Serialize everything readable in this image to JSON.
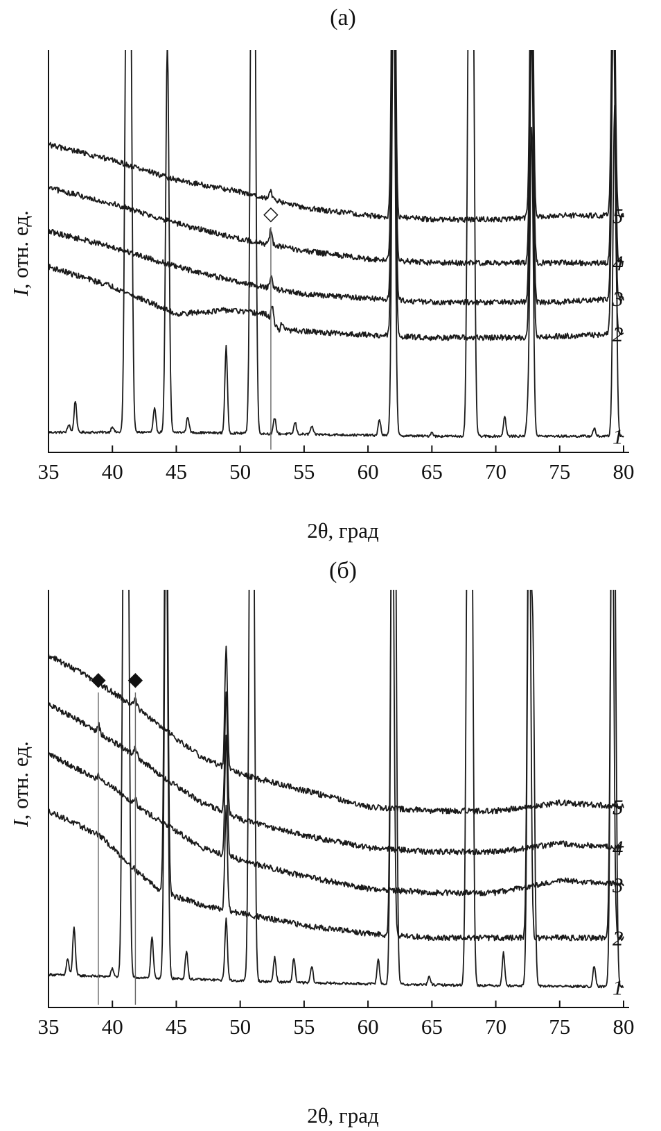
{
  "chart_data": [
    {
      "type": "line",
      "title": "(а)",
      "xlabel": "2θ, град",
      "ylabel_var": "I",
      "ylabel_rest": ", отн. ед.",
      "xlim": [
        35,
        80
      ],
      "xticks": [
        35,
        40,
        45,
        50,
        55,
        60,
        65,
        70,
        75,
        80
      ],
      "marker": {
        "symbol": "◇",
        "x": 52.4
      },
      "series": [
        {
          "name": "1",
          "baseline": [
            [
              35,
              0.03
            ],
            [
              45,
              0.03
            ],
            [
              55,
              0.025
            ],
            [
              65,
              0.02
            ],
            [
              80,
              0.02
            ]
          ],
          "peaks": [
            [
              36.6,
              0.02
            ],
            [
              37.1,
              0.08
            ],
            [
              40.0,
              0.015
            ],
            [
              41.1,
              1.2
            ],
            [
              41.4,
              1.2
            ],
            [
              43.3,
              0.06
            ],
            [
              44.3,
              0.98
            ],
            [
              45.9,
              0.04
            ],
            [
              48.9,
              0.22
            ],
            [
              50.9,
              1.2
            ],
            [
              51.1,
              1.2
            ],
            [
              52.7,
              0.04
            ],
            [
              54.3,
              0.03
            ],
            [
              55.6,
              0.02
            ],
            [
              60.9,
              0.04
            ],
            [
              62.0,
              1.2
            ],
            [
              65.0,
              0.01
            ],
            [
              67.9,
              1.2
            ],
            [
              68.2,
              1.2
            ],
            [
              70.7,
              0.05
            ],
            [
              72.5,
              0.05
            ],
            [
              72.8,
              0.78
            ],
            [
              77.7,
              0.02
            ],
            [
              79.3,
              0.84
            ]
          ]
        },
        {
          "name": "2",
          "baseline": [
            [
              35,
              0.45
            ],
            [
              40,
              0.4
            ],
            [
              45,
              0.33
            ],
            [
              49,
              0.34
            ],
            [
              52,
              0.33
            ],
            [
              53,
              0.29
            ],
            [
              58,
              0.28
            ],
            [
              65,
              0.27
            ],
            [
              72,
              0.27
            ],
            [
              80,
              0.28
            ]
          ],
          "peaks": [
            [
              52.5,
              0.04
            ],
            [
              53.3,
              0.02
            ],
            [
              62.0,
              1.2
            ],
            [
              72.8,
              0.78
            ],
            [
              79.2,
              0.84
            ]
          ]
        },
        {
          "name": "3",
          "baseline": [
            [
              35,
              0.54
            ],
            [
              40,
              0.5
            ],
            [
              45,
              0.45
            ],
            [
              50,
              0.41
            ],
            [
              55,
              0.38
            ],
            [
              60,
              0.37
            ],
            [
              65,
              0.36
            ],
            [
              70,
              0.36
            ],
            [
              75,
              0.36
            ],
            [
              80,
              0.37
            ]
          ],
          "peaks": [
            [
              52.4,
              0.03
            ],
            [
              62.0,
              1.2
            ],
            [
              72.8,
              0.78
            ],
            [
              79.2,
              0.84
            ]
          ]
        },
        {
          "name": "4",
          "baseline": [
            [
              35,
              0.65
            ],
            [
              40,
              0.61
            ],
            [
              45,
              0.56
            ],
            [
              50,
              0.52
            ],
            [
              55,
              0.49
            ],
            [
              60,
              0.47
            ],
            [
              65,
              0.46
            ],
            [
              70,
              0.46
            ],
            [
              75,
              0.46
            ],
            [
              80,
              0.46
            ]
          ],
          "peaks": [
            [
              52.4,
              0.04
            ],
            [
              62.0,
              1.2
            ],
            [
              72.8,
              0.78
            ],
            [
              79.2,
              0.84
            ]
          ]
        },
        {
          "name": "5",
          "baseline": [
            [
              35,
              0.76
            ],
            [
              40,
              0.72
            ],
            [
              45,
              0.67
            ],
            [
              50,
              0.64
            ],
            [
              55,
              0.6
            ],
            [
              60,
              0.58
            ],
            [
              65,
              0.57
            ],
            [
              70,
              0.57
            ],
            [
              75,
              0.58
            ],
            [
              80,
              0.58
            ]
          ],
          "peaks": [
            [
              52.4,
              0.02
            ],
            [
              62.0,
              1.2
            ],
            [
              72.8,
              0.78
            ],
            [
              79.2,
              0.84
            ]
          ]
        }
      ]
    },
    {
      "type": "line",
      "title": "(б)",
      "xlabel": "2θ, град",
      "ylabel_var": "I",
      "ylabel_rest": ", отн. ед.",
      "xlim": [
        35,
        80
      ],
      "xticks": [
        35,
        40,
        45,
        50,
        55,
        60,
        65,
        70,
        75,
        80
      ],
      "markers": [
        {
          "symbol": "◆",
          "x": 38.9
        },
        {
          "symbol": "◆",
          "x": 41.8
        }
      ],
      "series": [
        {
          "name": "1",
          "baseline": [
            [
              35,
              0.06
            ],
            [
              45,
              0.05
            ],
            [
              55,
              0.04
            ],
            [
              65,
              0.035
            ],
            [
              80,
              0.03
            ]
          ],
          "peaks": [
            [
              36.5,
              0.04
            ],
            [
              37.0,
              0.12
            ],
            [
              40.0,
              0.02
            ],
            [
              40.9,
              1.2
            ],
            [
              41.2,
              1.2
            ],
            [
              43.1,
              0.1
            ],
            [
              44.2,
              1.2
            ],
            [
              45.8,
              0.07
            ],
            [
              48.9,
              0.15
            ],
            [
              50.8,
              1.2
            ],
            [
              51.0,
              1.2
            ],
            [
              52.7,
              0.06
            ],
            [
              54.2,
              0.06
            ],
            [
              55.6,
              0.04
            ],
            [
              60.8,
              0.06
            ],
            [
              61.9,
              1.2
            ],
            [
              62.1,
              1.2
            ],
            [
              64.8,
              0.02
            ],
            [
              67.8,
              1.2
            ],
            [
              68.1,
              1.2
            ],
            [
              70.6,
              0.08
            ],
            [
              72.6,
              1.2
            ],
            [
              72.9,
              0.82
            ],
            [
              77.7,
              0.05
            ],
            [
              79.1,
              1.2
            ],
            [
              79.3,
              0.9
            ]
          ]
        },
        {
          "name": "2",
          "baseline": [
            [
              35,
              0.46
            ],
            [
              37,
              0.43
            ],
            [
              39,
              0.4
            ],
            [
              42,
              0.31
            ],
            [
              44,
              0.26
            ],
            [
              47,
              0.23
            ],
            [
              50,
              0.21
            ],
            [
              55,
              0.18
            ],
            [
              60,
              0.16
            ],
            [
              65,
              0.15
            ],
            [
              70,
              0.15
            ],
            [
              75,
              0.15
            ],
            [
              80,
              0.15
            ]
          ],
          "peaks": [
            [
              44.2,
              1.2
            ],
            [
              48.9,
              0.25
            ],
            [
              61.9,
              1.2
            ],
            [
              72.6,
              1.2
            ],
            [
              79.1,
              1.2
            ]
          ]
        },
        {
          "name": "3",
          "baseline": [
            [
              35,
              0.6
            ],
            [
              38,
              0.55
            ],
            [
              40,
              0.52
            ],
            [
              42,
              0.47
            ],
            [
              44,
              0.43
            ],
            [
              47,
              0.37
            ],
            [
              50,
              0.34
            ],
            [
              55,
              0.3
            ],
            [
              60,
              0.27
            ],
            [
              65,
              0.26
            ],
            [
              70,
              0.26
            ],
            [
              75,
              0.29
            ],
            [
              80,
              0.28
            ]
          ],
          "peaks": [
            [
              38.9,
              0.01
            ],
            [
              41.8,
              0.02
            ],
            [
              48.9,
              0.3
            ]
          ]
        },
        {
          "name": "4",
          "baseline": [
            [
              35,
              0.72
            ],
            [
              38,
              0.67
            ],
            [
              40,
              0.63
            ],
            [
              42,
              0.59
            ],
            [
              44,
              0.54
            ],
            [
              47,
              0.48
            ],
            [
              50,
              0.44
            ],
            [
              55,
              0.4
            ],
            [
              60,
              0.37
            ],
            [
              65,
              0.36
            ],
            [
              70,
              0.36
            ],
            [
              75,
              0.38
            ],
            [
              80,
              0.37
            ]
          ],
          "peaks": [
            [
              38.9,
              0.02
            ],
            [
              41.8,
              0.02
            ],
            [
              48.9,
              0.3
            ]
          ]
        },
        {
          "name": "5",
          "baseline": [
            [
              35,
              0.84
            ],
            [
              38,
              0.79
            ],
            [
              40,
              0.75
            ],
            [
              42,
              0.71
            ],
            [
              44,
              0.66
            ],
            [
              47,
              0.59
            ],
            [
              50,
              0.55
            ],
            [
              55,
              0.51
            ],
            [
              60,
              0.47
            ],
            [
              65,
              0.46
            ],
            [
              70,
              0.46
            ],
            [
              75,
              0.48
            ],
            [
              80,
              0.47
            ]
          ],
          "peaks": [
            [
              38.9,
              0.02
            ],
            [
              41.8,
              0.02
            ],
            [
              48.9,
              0.3
            ]
          ]
        }
      ]
    }
  ]
}
